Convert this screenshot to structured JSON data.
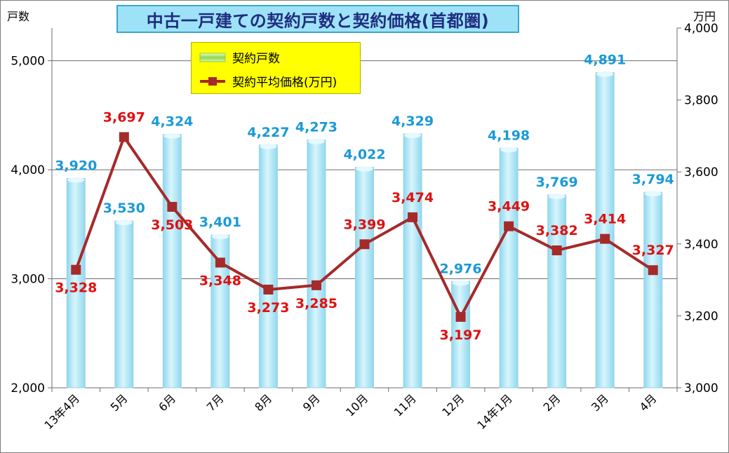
{
  "title": "中古一戸建ての契約戸数と契約価格(首都圏)",
  "left_unit": "戸数",
  "right_unit": "万円",
  "legend": {
    "bar_label": "契約戸数",
    "line_label": "契約平均価格(万円)"
  },
  "colors": {
    "bar": "#a6e4f4",
    "bar_label": "#1a9ad6",
    "line": "#a52a2a",
    "line_label": "#e01010",
    "legend_bg": "#ffff00",
    "title_bg": "#9ee2f7"
  },
  "chart_data": {
    "type": "bar+line",
    "categories": [
      "13年4月",
      "5月",
      "6月",
      "7月",
      "8月",
      "9月",
      "10月",
      "11月",
      "12月",
      "14年1月",
      "2月",
      "3月",
      "4月"
    ],
    "series": [
      {
        "name": "契約戸数",
        "type": "bar",
        "axis": "left",
        "values": [
          3920,
          3530,
          4324,
          3401,
          4227,
          4273,
          4022,
          4329,
          2976,
          4198,
          3769,
          4891,
          3794
        ],
        "labels": [
          "3,920",
          "3,530",
          "4,324",
          "3,401",
          "4,227",
          "4,273",
          "4,022",
          "4,329",
          "2,976",
          "4,198",
          "3,769",
          "4,891",
          "3,794"
        ]
      },
      {
        "name": "契約平均価格(万円)",
        "type": "line",
        "axis": "right",
        "values": [
          3328,
          3697,
          3503,
          3348,
          3273,
          3285,
          3399,
          3474,
          3197,
          3449,
          3382,
          3414,
          3327
        ],
        "labels": [
          "3,328",
          "3,697",
          "3,503",
          "3,348",
          "3,273",
          "3,285",
          "3,399",
          "3,474",
          "3,197",
          "3,449",
          "3,382",
          "3,414",
          "3,327"
        ]
      }
    ],
    "left_axis": {
      "ylim": [
        2000,
        5300
      ],
      "ticks": [
        2000,
        3000,
        4000,
        5000
      ],
      "tick_labels": [
        "2,000",
        "3,000",
        "4,000",
        "5,000"
      ]
    },
    "right_axis": {
      "ylim": [
        3000,
        4000
      ],
      "ticks": [
        3000,
        3200,
        3400,
        3600,
        3800,
        4000
      ],
      "tick_labels": [
        "3,000",
        "3,200",
        "3,400",
        "3,600",
        "3,800",
        "4,000"
      ]
    },
    "grid": true,
    "legend_position": "top-left"
  }
}
